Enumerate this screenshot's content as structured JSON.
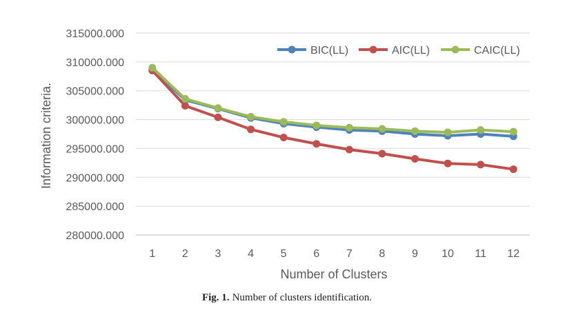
{
  "chart_data": {
    "type": "line",
    "x": [
      1,
      2,
      3,
      4,
      5,
      6,
      7,
      8,
      9,
      10,
      11,
      12
    ],
    "xlabel": "Number of Clusters",
    "ylabel": "Information criteria.",
    "ylim": [
      280000,
      315000
    ],
    "ytick_step": 5000,
    "ytick_format": "3 decimals",
    "grid": "horizontal",
    "legend_position": "top-right",
    "series": [
      {
        "name": "BIC(LL)",
        "color": "#4f81bd",
        "values": [
          308700,
          303400,
          301900,
          300300,
          299300,
          298700,
          298200,
          298000,
          297500,
          297200,
          297500,
          297100
        ]
      },
      {
        "name": "AIC(LL)",
        "color": "#c0504d",
        "values": [
          308500,
          302400,
          300400,
          298300,
          296900,
          295800,
          294800,
          294100,
          293200,
          292400,
          292200,
          291400
        ]
      },
      {
        "name": "CAIC(LL)",
        "color": "#9bbb59",
        "values": [
          309000,
          303600,
          302000,
          300500,
          299600,
          299000,
          298600,
          298400,
          298000,
          297800,
          298200,
          297900
        ]
      }
    ]
  },
  "caption": {
    "label": "Fig. 1.",
    "text": "Number of clusters identification."
  }
}
